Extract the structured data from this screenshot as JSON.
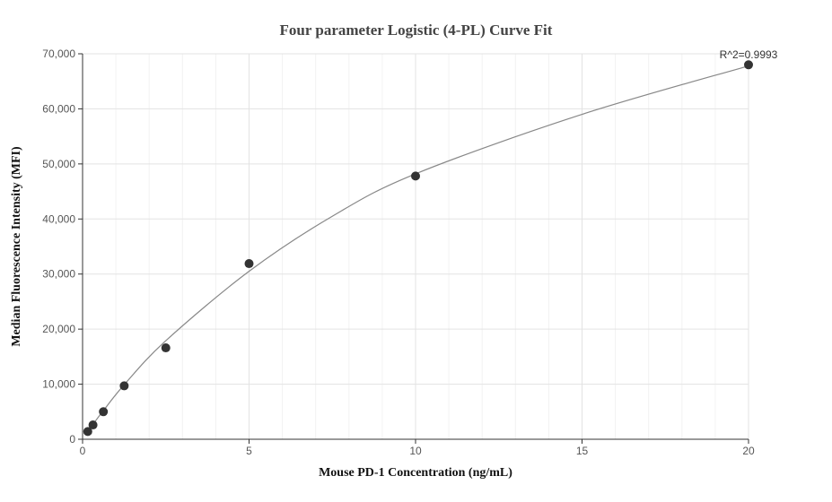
{
  "chart_data": {
    "type": "scatter",
    "title": "Four parameter Logistic (4-PL) Curve Fit",
    "xlabel": "Mouse PD-1 Concentration (ng/mL)",
    "ylabel": "Median Fluorescence Intensity (MFI)",
    "xlim": [
      0,
      20
    ],
    "ylim": [
      0,
      70000
    ],
    "xticks": [
      0,
      5,
      10,
      15,
      20
    ],
    "yticks": [
      0,
      10000,
      20000,
      30000,
      40000,
      50000,
      60000,
      70000
    ],
    "xtick_labels": [
      "0",
      "5",
      "10",
      "15",
      "20"
    ],
    "ytick_labels": [
      "0",
      "10,000",
      "20,000",
      "30,000",
      "40,000",
      "50,000",
      "60,000",
      "70,000"
    ],
    "grid": true,
    "series": [
      {
        "points": [
          {
            "x": 0.156,
            "y": 1400
          },
          {
            "x": 0.3125,
            "y": 2600
          },
          {
            "x": 0.625,
            "y": 5000
          },
          {
            "x": 1.25,
            "y": 9700
          },
          {
            "x": 2.5,
            "y": 16600
          },
          {
            "x": 5,
            "y": 31900
          },
          {
            "x": 10,
            "y": 47800
          },
          {
            "x": 20,
            "y": 68000
          }
        ]
      }
    ],
    "fit_curve": {
      "model": "4PL",
      "points": [
        {
          "x": 0.156,
          "y": 1300
        },
        {
          "x": 0.3125,
          "y": 2700
        },
        {
          "x": 0.625,
          "y": 5200
        },
        {
          "x": 1.25,
          "y": 9900
        },
        {
          "x": 2.5,
          "y": 17900
        },
        {
          "x": 5,
          "y": 30500
        },
        {
          "x": 7.5,
          "y": 40500
        },
        {
          "x": 10,
          "y": 48200
        },
        {
          "x": 15,
          "y": 59000
        },
        {
          "x": 20,
          "y": 67800
        }
      ],
      "color": "#888888"
    },
    "annotations": [
      {
        "text": "R^2=0.9993",
        "x": 20,
        "y": 68000
      }
    ],
    "marker_color": "#333333"
  }
}
